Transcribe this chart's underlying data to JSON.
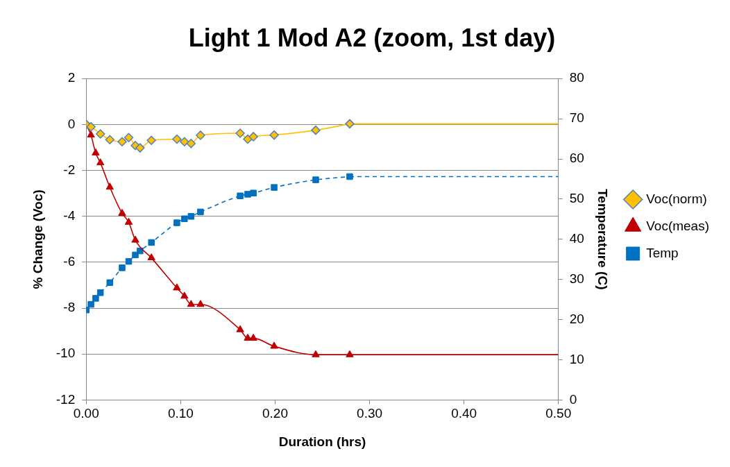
{
  "chart_data": {
    "type": "line",
    "title": "Light 1 Mod A2 (zoom, 1st day)",
    "xlabel": "Duration (hrs)",
    "ylabel": "% Change (Voc)",
    "y2label": "Temperature (C)",
    "xlim": [
      0,
      0.5
    ],
    "xticks": [
      {
        "value": 0,
        "label": "0.00"
      },
      {
        "value": 0.1,
        "label": "0.10"
      },
      {
        "value": 0.2,
        "label": "0.20"
      },
      {
        "value": 0.3,
        "label": "0.30"
      },
      {
        "value": 0.4,
        "label": "0.40"
      },
      {
        "value": 0.5,
        "label": "0.50"
      }
    ],
    "ylim": [
      -12,
      2
    ],
    "yticks": [
      -12,
      -10,
      -8,
      -6,
      -4,
      -2,
      0,
      2
    ],
    "y2lim": [
      0,
      80
    ],
    "y2ticks": [
      0,
      10,
      20,
      30,
      40,
      50,
      60,
      70,
      80
    ],
    "grid": "y",
    "legend": "right",
    "series": [
      {
        "name": "Voc(norm)",
        "color": "#ffc000",
        "marker": "diamond",
        "line_style": "solid",
        "x": [
          0,
          0.005,
          0.015,
          0.025,
          0.038,
          0.045,
          0.052,
          0.057,
          0.069,
          0.096,
          0.104,
          0.111,
          0.121,
          0.163,
          0.171,
          0.177,
          0.199,
          0.243,
          0.279
        ],
        "values": [
          0,
          -0.1,
          -0.41,
          -0.66,
          -0.75,
          -0.57,
          -0.92,
          -1.02,
          -0.69,
          -0.64,
          -0.75,
          -0.83,
          -0.47,
          -0.38,
          -0.64,
          -0.53,
          -0.46,
          -0.25,
          0.03
        ]
      },
      {
        "name": "Voc(meas)",
        "color": "#c00000",
        "marker": "triangle",
        "line_style": "solid",
        "x": [
          0,
          0.005,
          0.01,
          0.015,
          0.025,
          0.038,
          0.045,
          0.052,
          0.069,
          0.096,
          0.104,
          0.111,
          0.121,
          0.163,
          0.171,
          0.177,
          0.199,
          0.243,
          0.279
        ],
        "values": [
          0,
          -0.46,
          -1.24,
          -1.67,
          -2.73,
          -3.87,
          -4.26,
          -5.04,
          -5.81,
          -7.12,
          -7.48,
          -7.84,
          -7.84,
          -8.94,
          -9.31,
          -9.31,
          -9.66,
          -10.03,
          -10.03
        ]
      },
      {
        "name": "Temp",
        "color": "#0070c0",
        "marker": "square",
        "line_style": "dashed",
        "axis": "y2",
        "x": [
          0,
          0.005,
          0.01,
          0.015,
          0.025,
          0.038,
          0.045,
          0.052,
          0.057,
          0.069,
          0.096,
          0.104,
          0.111,
          0.121,
          0.163,
          0.171,
          0.177,
          0.199,
          0.243,
          0.279
        ],
        "values": [
          22.4,
          23.8,
          25.3,
          26.7,
          29.2,
          32.9,
          34.5,
          36.1,
          37.1,
          39.2,
          44.1,
          45.1,
          45.7,
          46.8,
          50.8,
          51.2,
          51.5,
          52.9,
          54.8,
          55.6
        ]
      },
      {
        "color": "#ffc000",
        "marker": "none",
        "line_style": "solid",
        "x": [
          0.279,
          0.5
        ],
        "values": [
          0.03,
          0.03
        ]
      },
      {
        "color": "#c00000",
        "marker": "none",
        "line_style": "solid",
        "x": [
          0.279,
          0.5
        ],
        "values": [
          -10.03,
          -10.03
        ]
      },
      {
        "color": "#0070c0",
        "marker": "none",
        "line_style": "dashed",
        "axis": "y2",
        "x": [
          0.279,
          0.5
        ],
        "values": [
          55.6,
          55.6
        ]
      }
    ]
  }
}
